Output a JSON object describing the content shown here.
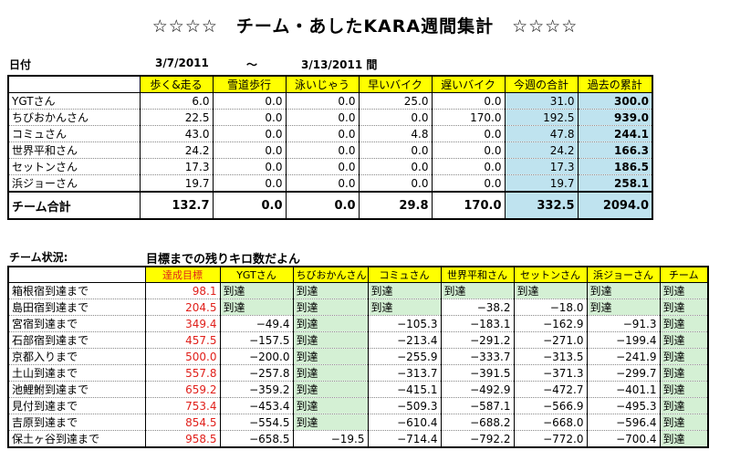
{
  "title": "☆☆☆☆　チーム・あしたKARA週間集計　☆☆☆☆",
  "date_row": {
    "label": "日付",
    "start": "3/7/2011",
    "tilde": "～",
    "end": "3/13/2011 間"
  },
  "weekly": {
    "headers": [
      "歩く&走る",
      "雪道歩行",
      "泳いじゃう",
      "早いバイク",
      "遅いバイク",
      "今週の合計",
      "過去の累計"
    ],
    "rows": [
      {
        "name": "YGTさん",
        "values": [
          "6.0",
          "0.0",
          "0.0",
          "25.0",
          "0.0",
          "31.0",
          "300.0"
        ]
      },
      {
        "name": "ちびおかんさん",
        "values": [
          "22.5",
          "0.0",
          "0.0",
          "0.0",
          "170.0",
          "192.5",
          "939.0"
        ]
      },
      {
        "name": "コミュさん",
        "values": [
          "43.0",
          "0.0",
          "0.0",
          "4.8",
          "0.0",
          "47.8",
          "244.1"
        ]
      },
      {
        "name": "世界平和さん",
        "values": [
          "24.2",
          "0.0",
          "0.0",
          "0.0",
          "0.0",
          "24.2",
          "166.3"
        ]
      },
      {
        "name": "セットンさん",
        "values": [
          "17.3",
          "0.0",
          "0.0",
          "0.0",
          "0.0",
          "17.3",
          "186.5"
        ]
      },
      {
        "name": "浜ジョーさん",
        "values": [
          "19.7",
          "0.0",
          "0.0",
          "0.0",
          "0.0",
          "19.7",
          "258.1"
        ]
      }
    ],
    "total": {
      "name": "チーム合計",
      "values": [
        "132.7",
        "0.0",
        "0.0",
        "29.8",
        "170.0",
        "332.5",
        "2094.0"
      ]
    }
  },
  "status_label": "チーム状況:",
  "status_caption": "目標までの残りキロ数だよん",
  "status": {
    "headers": [
      "達成目標",
      "YGTさん",
      "ちびおかんさん",
      "コミュさん",
      "世界平和さん",
      "セットンさん",
      "浜ジョーさん",
      "チーム"
    ],
    "rows": [
      {
        "name": "箱根宿到達まで",
        "goal": "98.1",
        "cells": [
          "到達",
          "到達",
          "到達",
          "到達",
          "到達",
          "到達",
          "到達"
        ]
      },
      {
        "name": "島田宿到達まで",
        "goal": "204.5",
        "cells": [
          "到達",
          "到達",
          "到達",
          "−38.2",
          "−18.0",
          "到達",
          "到達"
        ]
      },
      {
        "name": "宮宿到達まで",
        "goal": "349.4",
        "cells": [
          "−49.4",
          "到達",
          "−105.3",
          "−183.1",
          "−162.9",
          "−91.3",
          "到達"
        ]
      },
      {
        "name": "石部宿到達まで",
        "goal": "457.5",
        "cells": [
          "−157.5",
          "到達",
          "−213.4",
          "−291.2",
          "−271.0",
          "−199.4",
          "到達"
        ]
      },
      {
        "name": "京都入りまで",
        "goal": "500.0",
        "cells": [
          "−200.0",
          "到達",
          "−255.9",
          "−333.7",
          "−313.5",
          "−241.9",
          "到達"
        ]
      },
      {
        "name": "土山到達まで",
        "goal": "557.8",
        "cells": [
          "−257.8",
          "到達",
          "−313.7",
          "−391.5",
          "−371.3",
          "−299.7",
          "到達"
        ]
      },
      {
        "name": "池鯉鮒到達まで",
        "goal": "659.2",
        "cells": [
          "−359.2",
          "到達",
          "−415.1",
          "−492.9",
          "−472.7",
          "−401.1",
          "到達"
        ]
      },
      {
        "name": "見付到達まで",
        "goal": "753.4",
        "cells": [
          "−453.4",
          "到達",
          "−509.3",
          "−587.1",
          "−566.9",
          "−495.3",
          "到達"
        ]
      },
      {
        "name": "吉原到達まで",
        "goal": "854.5",
        "cells": [
          "−554.5",
          "到達",
          "−610.4",
          "−688.2",
          "−668.0",
          "−596.4",
          "到達"
        ]
      },
      {
        "name": "保土ヶ谷到達まで",
        "goal": "958.5",
        "cells": [
          "−658.5",
          "−19.5",
          "−714.4",
          "−792.2",
          "−772.0",
          "−700.4",
          "到達"
        ]
      }
    ]
  }
}
